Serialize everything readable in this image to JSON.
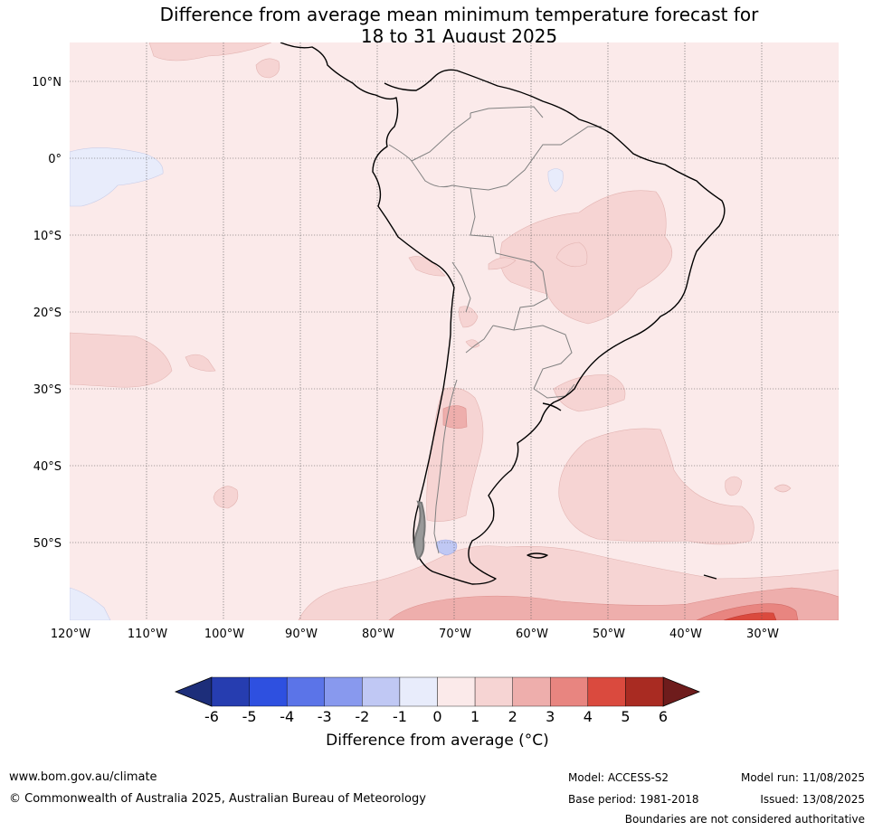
{
  "title_line1": "Difference from average mean minimum temperature forecast for",
  "title_line2": "18 to 31 August 2025",
  "lat_labels": [
    "10°N",
    "0°",
    "10°S",
    "20°S",
    "30°S",
    "40°S",
    "50°S"
  ],
  "lon_labels": [
    "120°W",
    "110°W",
    "100°W",
    "90°W",
    "80°W",
    "70°W",
    "60°W",
    "50°W",
    "40°W",
    "30°W"
  ],
  "colorbar": {
    "title": "Difference from average (°C)",
    "ticks": [
      "-6",
      "-5",
      "-4",
      "-3",
      "-2",
      "-1",
      "0",
      "1",
      "2",
      "3",
      "4",
      "5",
      "6"
    ],
    "colors": [
      "#263db0",
      "#2e50e0",
      "#5b74e8",
      "#8899ee",
      "#c0c8f4",
      "#e8ecfb",
      "#fbeaea",
      "#f6d4d3",
      "#eeaeac",
      "#e88580",
      "#da4a3e",
      "#a92b22"
    ],
    "under_color": "#1d2e7a",
    "over_color": "#6e1c1c"
  },
  "footer": {
    "website": "www.bom.gov.au/climate",
    "copyright": "© Commonwealth of Australia 2025, Australian Bureau of Meteorology",
    "model": "Model: ACCESS-S2",
    "base_period": "Base period: 1981-2018",
    "model_run": "Model run: 11/08/2025",
    "issued": "Issued: 13/08/2025",
    "disclaimer": "Boundaries are not considered authoritative"
  }
}
